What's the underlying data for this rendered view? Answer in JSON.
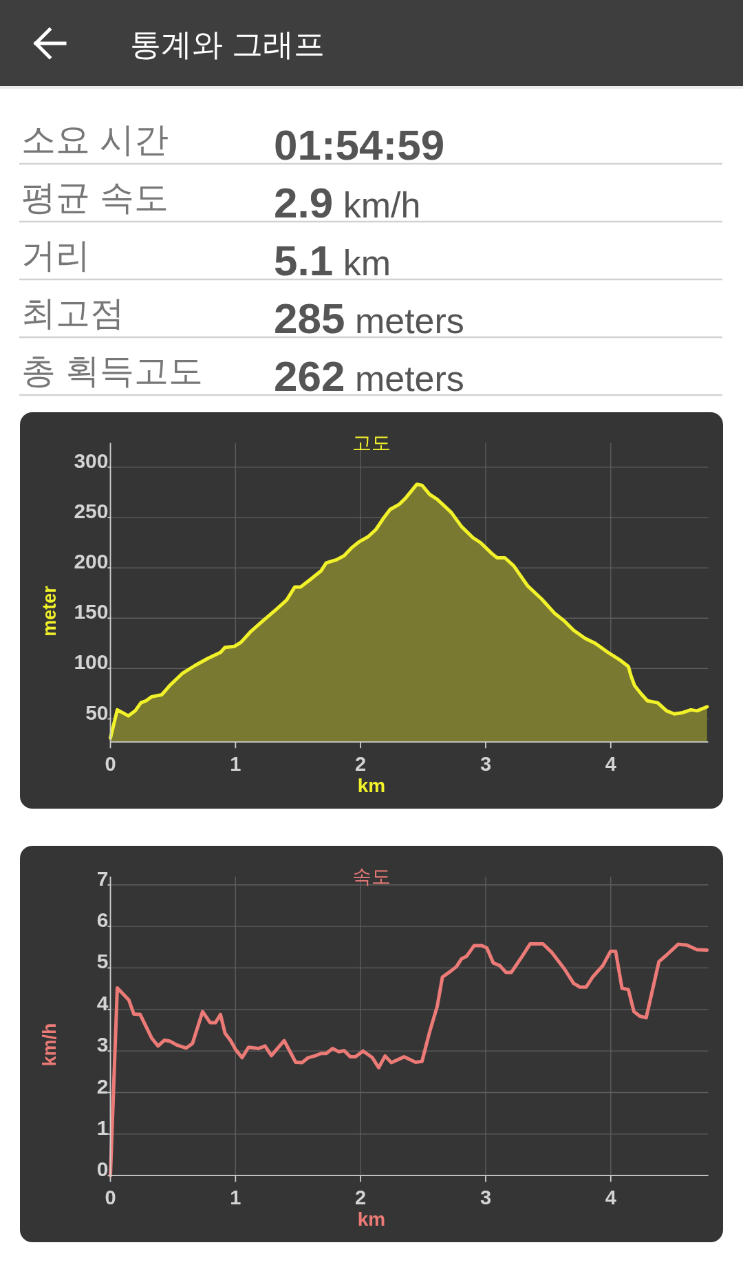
{
  "chart_data": [
    {
      "type": "other",
      "title": "통계와 그래프",
      "annotations": [
        "소요 시간",
        "01:54:59",
        "평균 속도",
        "**2.9** km/h",
        "거리",
        "**5.1** km",
        "최고점",
        "**285** meters",
        "총 획득고도",
        "**262** meters"
      ]
    },
    {
      "type": "area",
      "title": "고도",
      "xlabel": "km",
      "ylabel": "meter",
      "xlim": [
        0,
        4.78
      ],
      "ylim": [
        27,
        324
      ],
      "xticks": [
        0,
        1,
        2,
        3,
        4
      ],
      "yticks": [
        50,
        100,
        150,
        200,
        250,
        300
      ],
      "grid": true,
      "x": [
        0,
        0.055,
        0.143,
        0.198,
        0.244,
        0.285,
        0.33,
        0.411,
        0.473,
        0.574,
        0.676,
        0.778,
        0.88,
        0.916,
        0.992,
        1.043,
        1.124,
        1.206,
        1.328,
        1.409,
        1.474,
        1.521,
        1.593,
        1.684,
        1.725,
        1.807,
        1.868,
        1.929,
        1.99,
        2.061,
        2.122,
        2.187,
        2.236,
        2.308,
        2.358,
        2.45,
        2.491,
        2.552,
        2.613,
        2.674,
        2.725,
        2.807,
        2.898,
        2.959,
        3.051,
        3.092,
        3.153,
        3.224,
        3.336,
        3.448,
        3.55,
        3.631,
        3.703,
        3.794,
        3.876,
        3.978,
        4.079,
        4.141,
        4.161,
        4.191,
        4.242,
        4.293,
        4.375,
        4.446,
        4.507,
        4.568,
        4.64,
        4.691,
        4.77
      ],
      "series": [
        {
          "color": "#f2f22a",
          "values": [
            31,
            59,
            53,
            58,
            66,
            68,
            72,
            74,
            83,
            95,
            103,
            110,
            116,
            121,
            122,
            126,
            137,
            146,
            159,
            168,
            181,
            181,
            188,
            197,
            205,
            208,
            212,
            220,
            226,
            231,
            238,
            250,
            258,
            263,
            269,
            283,
            282,
            273,
            268,
            261,
            255,
            241,
            230,
            225,
            214,
            210,
            210,
            202,
            182,
            169,
            155,
            147,
            138,
            130,
            125,
            116,
            108,
            102,
            93,
            83,
            75,
            68,
            66,
            58,
            55,
            56,
            59,
            58,
            62
          ]
        }
      ]
    },
    {
      "type": "line",
      "title": "속도",
      "xlabel": "km",
      "ylabel": "km/h",
      "xlim": [
        0,
        4.78
      ],
      "ylim": [
        0,
        7.2
      ],
      "xticks": [
        0,
        1,
        2,
        3,
        4
      ],
      "yticks": [
        0,
        1,
        2,
        3,
        4,
        5,
        6,
        7
      ],
      "grid": true,
      "x": [
        0,
        0.055,
        0.147,
        0.187,
        0.238,
        0.33,
        0.381,
        0.432,
        0.473,
        0.534,
        0.605,
        0.656,
        0.737,
        0.798,
        0.839,
        0.88,
        0.916,
        0.961,
        1.002,
        1.053,
        1.104,
        1.185,
        1.236,
        1.287,
        1.389,
        1.481,
        1.532,
        1.582,
        1.633,
        1.684,
        1.725,
        1.776,
        1.827,
        1.868,
        1.918,
        1.959,
        2.02,
        2.094,
        2.145,
        2.196,
        2.246,
        2.348,
        2.44,
        2.491,
        2.552,
        2.613,
        2.654,
        2.715,
        2.766,
        2.807,
        2.847,
        2.908,
        2.969,
        3.01,
        3.061,
        3.112,
        3.163,
        3.204,
        3.285,
        3.356,
        3.458,
        3.53,
        3.631,
        3.703,
        3.754,
        3.804,
        3.855,
        3.937,
        3.998,
        4.039,
        4.09,
        4.141,
        4.185,
        4.232,
        4.283,
        4.385,
        4.446,
        4.538,
        4.609,
        4.69,
        4.77
      ],
      "series": [
        {
          "color": "#ec7b77",
          "values": [
            0,
            4.52,
            4.23,
            3.89,
            3.88,
            3.31,
            3.12,
            3.26,
            3.24,
            3.14,
            3.07,
            3.18,
            3.95,
            3.68,
            3.68,
            3.88,
            3.43,
            3.25,
            3.03,
            2.84,
            3.09,
            3.06,
            3.12,
            2.89,
            3.25,
            2.73,
            2.72,
            2.84,
            2.88,
            2.94,
            2.94,
            3.06,
            2.98,
            3.01,
            2.86,
            2.86,
            3.0,
            2.84,
            2.6,
            2.88,
            2.72,
            2.86,
            2.73,
            2.75,
            3.46,
            4.08,
            4.78,
            4.91,
            5.03,
            5.22,
            5.28,
            5.54,
            5.54,
            5.48,
            5.12,
            5.06,
            4.89,
            4.89,
            5.25,
            5.58,
            5.58,
            5.37,
            4.97,
            4.63,
            4.54,
            4.54,
            4.78,
            5.06,
            5.4,
            5.4,
            4.51,
            4.48,
            3.95,
            3.84,
            3.8,
            5.15,
            5.31,
            5.57,
            5.55,
            5.44,
            5.43
          ]
        }
      ]
    }
  ]
}
